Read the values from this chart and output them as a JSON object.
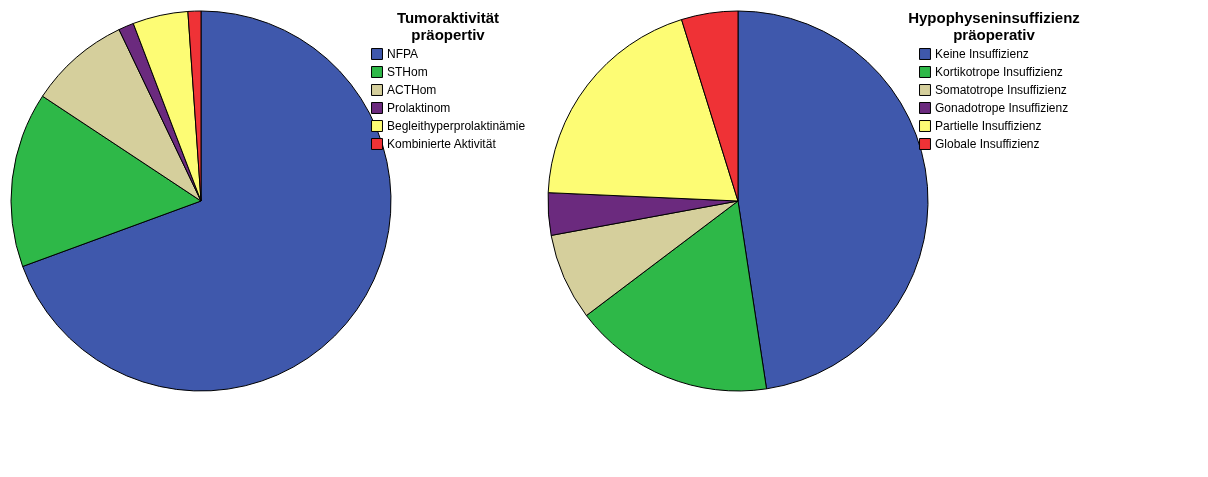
{
  "chart_data": [
    {
      "type": "pie",
      "legend_title": "Tumoraktivität präopertiv",
      "legend": "right",
      "categories": [
        "NFPA",
        "STHom",
        "ACTHom",
        "Prolaktinom",
        "Begleithyperprolaktinämie",
        "Kombinierte Aktivität"
      ],
      "values": [
        69.4,
        14.9,
        8.6,
        1.3,
        4.7,
        1.1
      ],
      "colors": [
        "#3f58ac",
        "#2eb848",
        "#d5cf9c",
        "#6b2a7e",
        "#fdfc74",
        "#ef3236"
      ]
    },
    {
      "type": "pie",
      "legend_title": "Hypophyseninsuffizienz präoperativ",
      "legend": "right",
      "categories": [
        "Keine Insuffizienz",
        "Kortikotrope Insuffizienz",
        "Somatotrope Insuffizienz",
        "Gonadotrope Insuffizienz",
        "Partielle Insuffizienz",
        "Globale Insuffizienz"
      ],
      "values": [
        47.6,
        17.1,
        7.4,
        3.6,
        19.5,
        4.8
      ],
      "colors": [
        "#3f58ac",
        "#2eb848",
        "#d5cf9c",
        "#6b2a7e",
        "#fdfc74",
        "#ef3236"
      ]
    }
  ]
}
